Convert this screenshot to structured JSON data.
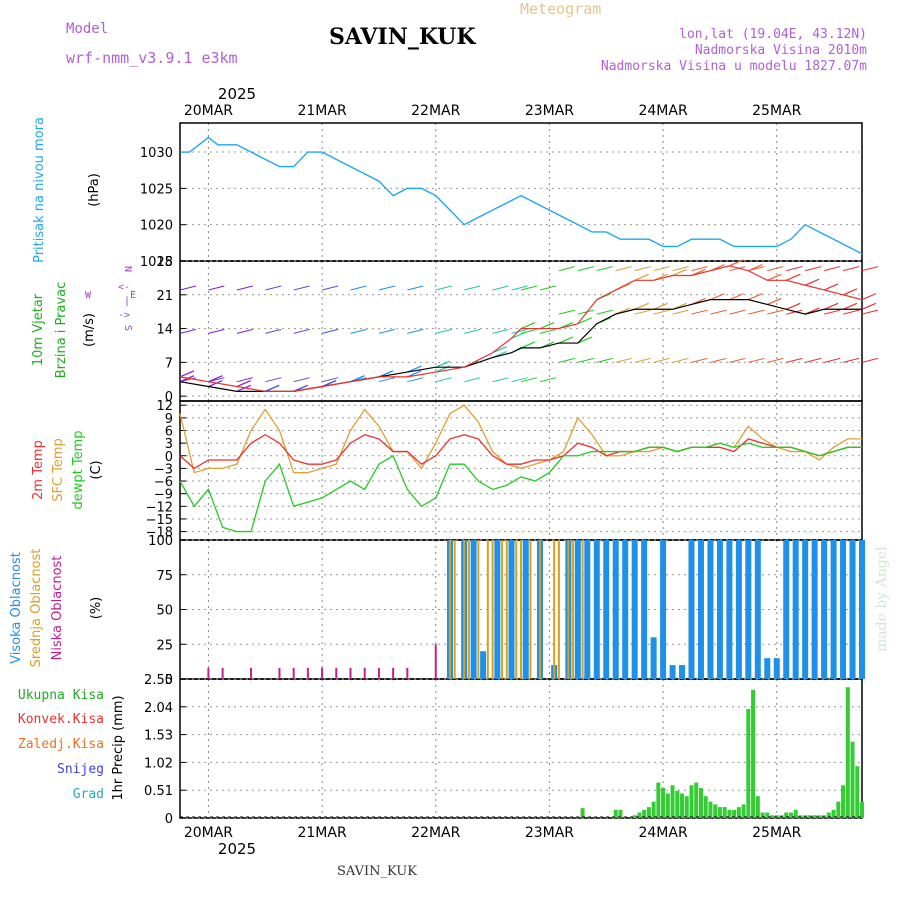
{
  "header": {
    "model_label": "Model",
    "model_name": "wrf-nmm_v3.9.1 e3km",
    "station": "SAVIN_KUK",
    "title": "Meteogram",
    "coords": "lon,lat (19.04E, 43.12N)",
    "elevation": "Nadmorska Visina 2010m",
    "model_elevation": "Nadmorska Visina u modelu 1827.07m"
  },
  "footer": {
    "station": "SAVIN_KUK",
    "watermark": "made by Angel"
  },
  "colors": {
    "pressure": "#1ea8f0",
    "temp2m": "#ee3030",
    "sfc": "#e0a030",
    "dewpt": "#22cc22",
    "purple": "#a040d8",
    "precip": "#33cc33",
    "high_cloud": "#1e90e8",
    "mid_cloud": "#d8a020",
    "low_cloud": "#c0208a"
  },
  "chart_data": [
    {
      "id": "time_axis",
      "type": "line",
      "year": "2025",
      "day_labels": [
        "20MAR",
        "21MAR",
        "22MAR",
        "23MAR",
        "24MAR",
        "25MAR"
      ],
      "x_unit": "hours since 2025-03-19 18:00",
      "xlim": [
        0,
        144
      ]
    },
    {
      "id": "pressure",
      "type": "line",
      "title": "Pritisak na nivou mora",
      "ylabel": "(hPa)",
      "ylim": [
        1015,
        1034
      ],
      "yticks": [
        "1030",
        "1025",
        "1020",
        "1015"
      ],
      "x": [
        0,
        2,
        4,
        6,
        8,
        10,
        12,
        15,
        18,
        21,
        24,
        27,
        30,
        33,
        36,
        39,
        42,
        45,
        48,
        51,
        54,
        57,
        60,
        63,
        66,
        69,
        72,
        75,
        78,
        81,
        84,
        87,
        90,
        93,
        96,
        99,
        102,
        105,
        108,
        111,
        114,
        117,
        120,
        123,
        126,
        129,
        132,
        135,
        138,
        141,
        144
      ],
      "values": [
        1030,
        1030,
        1031,
        1032,
        1031,
        1031,
        1031,
        1030,
        1029,
        1028,
        1028,
        1030,
        1030,
        1029,
        1028,
        1027,
        1026,
        1024,
        1025,
        1025,
        1024,
        1022,
        1020,
        1021,
        1022,
        1023,
        1024,
        1023,
        1022,
        1021,
        1020,
        1019,
        1019,
        1018,
        1018,
        1018,
        1017,
        1017,
        1018,
        1018,
        1018,
        1017,
        1017,
        1017,
        1017,
        1018,
        1020,
        1019,
        1018,
        1017,
        1016
      ]
    },
    {
      "id": "wind",
      "type": "line",
      "title": "10m Vjetar",
      "title2": "Brzina i Pravac",
      "ylabel": "(m/s)",
      "ylim": [
        -1,
        28
      ],
      "yticks": [
        "28",
        "21",
        "14",
        "7",
        "0"
      ],
      "direction_legend": [
        "N",
        "<-",
        "|",
        "->",
        "S",
        "W",
        "E"
      ],
      "x": [
        0,
        6,
        12,
        18,
        24,
        30,
        36,
        42,
        48,
        54,
        60,
        66,
        70,
        72,
        76,
        80,
        84,
        88,
        92,
        96,
        100,
        104,
        108,
        112,
        116,
        120,
        124,
        128,
        132,
        136,
        140,
        144
      ],
      "speed": [
        3,
        2,
        1,
        1,
        1,
        2,
        3,
        4,
        5,
        6,
        6,
        8,
        9,
        10,
        10,
        11,
        11,
        15,
        17,
        18,
        18,
        18,
        19,
        20,
        20,
        20,
        19,
        18,
        17,
        18,
        18,
        18
      ],
      "gust": [
        4,
        3,
        2,
        1,
        1,
        2,
        3,
        4,
        4,
        5,
        6,
        9,
        12,
        14,
        14,
        14,
        15,
        20,
        22,
        24,
        24,
        25,
        25,
        26,
        27,
        26,
        24,
        24,
        23,
        22,
        21,
        20
      ]
    },
    {
      "id": "temperature",
      "type": "line",
      "title": "2m Temp",
      "title2": "SFC Temp",
      "title3": "dewpt Temp",
      "ylabel": "(C)",
      "ylim": [
        -20,
        13
      ],
      "yticks": [
        "12",
        "9",
        "6",
        "3",
        "0",
        "−3",
        "−6",
        "−9",
        "−12",
        "−15",
        "−18"
      ],
      "x": [
        0,
        3,
        6,
        9,
        12,
        15,
        18,
        21,
        24,
        27,
        30,
        33,
        36,
        39,
        42,
        45,
        48,
        51,
        54,
        57,
        60,
        63,
        66,
        69,
        72,
        75,
        78,
        81,
        84,
        87,
        90,
        93,
        96,
        99,
        102,
        105,
        108,
        111,
        114,
        117,
        120,
        123,
        126,
        129,
        132,
        135,
        138,
        141,
        144
      ],
      "temp2m": [
        0,
        -3,
        -1,
        -1,
        -1,
        3,
        5,
        3,
        -1,
        -2,
        -2,
        -1,
        3,
        5,
        4,
        1,
        1,
        -2,
        0,
        4,
        5,
        4,
        0,
        -2,
        -2,
        -1,
        -1,
        0,
        3,
        2,
        0,
        1,
        1,
        2,
        2,
        1,
        2,
        2,
        2,
        1,
        4,
        3,
        2,
        2,
        1,
        0,
        1,
        2,
        2
      ],
      "sfc": [
        10,
        -4,
        -3,
        -3,
        -2,
        6,
        11,
        6,
        -4,
        -4,
        -3,
        -2,
        6,
        11,
        7,
        1,
        1,
        -3,
        3,
        10,
        12,
        8,
        1,
        -2,
        -3,
        -2,
        -1,
        1,
        9,
        5,
        0,
        0,
        1,
        1,
        2,
        1,
        2,
        2,
        3,
        2,
        7,
        4,
        2,
        1,
        1,
        -1,
        2,
        4,
        4
      ],
      "dewpt": [
        -6,
        -12,
        -8,
        -17,
        -18,
        -18,
        -6,
        -2,
        -12,
        -11,
        -10,
        -8,
        -6,
        -8,
        -2,
        0,
        -8,
        -12,
        -10,
        -2,
        -2,
        -6,
        -8,
        -7,
        -5,
        -6,
        -4,
        0,
        0,
        1,
        1,
        1,
        1,
        2,
        2,
        1,
        2,
        2,
        3,
        2,
        3,
        2,
        2,
        2,
        1,
        0,
        1,
        2,
        2
      ]
    },
    {
      "id": "clouds",
      "type": "bar",
      "title": "Visoka Oblacnost",
      "title2": "Srednja Oblacnost",
      "title3": "Niska Oblacnost",
      "ylabel": "(%)",
      "ylim": [
        0,
        100
      ],
      "yticks": [
        "100",
        "75",
        "50",
        "25",
        "0"
      ],
      "low_x": [
        6,
        9,
        15,
        21,
        24,
        27,
        30,
        33,
        36,
        39,
        42,
        45,
        48,
        54
      ],
      "low_values": [
        8,
        8,
        8,
        8,
        8,
        8,
        8,
        8,
        8,
        8,
        8,
        8,
        8,
        25
      ],
      "high_x": [
        57,
        60,
        62,
        64,
        67,
        70,
        73,
        76,
        79,
        82,
        84,
        86,
        88,
        90,
        92,
        94,
        96,
        98,
        100,
        102,
        104,
        106,
        108,
        110,
        112,
        114,
        116,
        118,
        120,
        122,
        124,
        126,
        128,
        130,
        132,
        134,
        136,
        138,
        140,
        142,
        144
      ],
      "high_values": [
        100,
        100,
        100,
        20,
        100,
        100,
        100,
        100,
        10,
        100,
        100,
        100,
        100,
        100,
        100,
        100,
        100,
        100,
        30,
        100,
        10,
        10,
        100,
        100,
        100,
        100,
        100,
        100,
        100,
        100,
        15,
        15,
        100,
        100,
        100,
        100,
        100,
        100,
        100,
        100,
        100
      ],
      "mid_x": [
        57,
        58,
        60,
        61,
        63,
        65,
        66,
        68,
        69,
        71,
        72,
        74,
        76,
        79,
        80,
        82,
        83,
        85
      ],
      "mid_values": [
        100,
        100,
        100,
        100,
        100,
        100,
        100,
        100,
        100,
        100,
        100,
        100,
        100,
        100,
        100,
        100,
        100,
        100
      ]
    },
    {
      "id": "precipitation",
      "type": "bar",
      "labels": [
        "Ukupna Kisa",
        "Konvek.Kisa",
        "Zaledj.Kisa",
        "Snijeg",
        "Grad"
      ],
      "ylabel": "1hr Precip (mm)",
      "ylim": [
        0,
        2.55
      ],
      "yticks": [
        "2.55",
        "2.04",
        "1.53",
        "1.02",
        "0.51",
        "0"
      ],
      "x": [
        85,
        92,
        93,
        96,
        97,
        98,
        99,
        100,
        101,
        102,
        103,
        104,
        105,
        106,
        107,
        108,
        109,
        110,
        111,
        112,
        113,
        114,
        115,
        116,
        117,
        118,
        119,
        120,
        121,
        122,
        123,
        124,
        125,
        126,
        127,
        128,
        129,
        130,
        131,
        132,
        133,
        134,
        135,
        136,
        137,
        138,
        139,
        140,
        141,
        142,
        143,
        144
      ],
      "values": [
        0.18,
        0.15,
        0.15,
        0.05,
        0.1,
        0.15,
        0.2,
        0.3,
        0.65,
        0.55,
        0.45,
        0.6,
        0.5,
        0.45,
        0.4,
        0.6,
        0.65,
        0.55,
        0.4,
        0.3,
        0.25,
        0.2,
        0.2,
        0.15,
        0.15,
        0.2,
        0.25,
        2.0,
        2.35,
        0.4,
        0.1,
        0.1,
        0.05,
        0.05,
        0.05,
        0.1,
        0.1,
        0.15,
        0.05,
        0.05,
        0.05,
        0.05,
        0.05,
        0.05,
        0.1,
        0.15,
        0.3,
        0.6,
        2.4,
        1.4,
        0.95,
        0.3
      ]
    }
  ]
}
